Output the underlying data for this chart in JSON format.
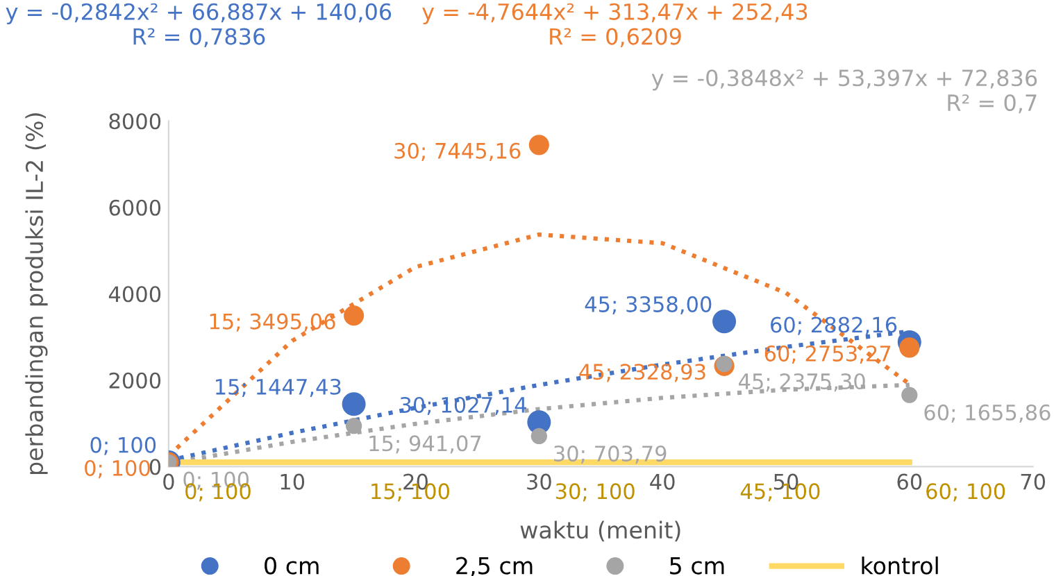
{
  "chart_data": {
    "type": "scatter",
    "xlabel": "waktu (menit)",
    "ylabel": "perbandingan produksi IL-2 (%)",
    "xlim": [
      0,
      70
    ],
    "xticks": [
      0,
      10,
      20,
      30,
      40,
      50,
      60,
      70
    ],
    "ylim": [
      0,
      8000
    ],
    "yticks": [
      0,
      2000,
      4000,
      6000,
      8000
    ],
    "grid": false,
    "legend": "bottom",
    "series": [
      {
        "name": "0 cm",
        "marker": "circle",
        "color": "#4472c4",
        "x": [
          0,
          15,
          30,
          45,
          60
        ],
        "values": [
          100,
          1447.43,
          1027.14,
          3358.0,
          2882.16
        ],
        "value_labels": [
          "0; 100",
          "15; 1447,43",
          "30; 1027,14",
          "45; 3358,00",
          "60; 2882,16"
        ]
      },
      {
        "name": "2,5 cm",
        "marker": "circle",
        "color": "#ed7d31",
        "x": [
          0,
          15,
          30,
          45,
          60
        ],
        "values": [
          100,
          3495.06,
          7445.16,
          2328.93,
          2753.27
        ],
        "value_labels": [
          "0; 100",
          "15; 3495,06",
          "30; 7445,16",
          "45; 2328,93",
          "60; 2753,27"
        ]
      },
      {
        "name": "5 cm",
        "marker": "circle",
        "color": "#a5a5a5",
        "x": [
          0,
          15,
          30,
          45,
          60
        ],
        "values": [
          100,
          941.07,
          703.79,
          2375.3,
          1655.86
        ],
        "value_labels": [
          "0; 100",
          "15; 941,07",
          "30; 703,79",
          "45; 2375,30",
          "60; 1655,86"
        ]
      },
      {
        "name": "kontrol",
        "type": "line",
        "marker": "none",
        "line_style": "solid",
        "color": "#ffd966",
        "x": [
          0,
          15,
          30,
          45,
          60
        ],
        "values": [
          100,
          100,
          100,
          100,
          100
        ],
        "value_labels": [
          "0; 100",
          "15; 100",
          "30; 100",
          "45; 100",
          "60; 100"
        ]
      },
      {
        "type": "line",
        "marker": "none",
        "line_style": "dotted",
        "color": "#4472c4",
        "x": [
          0,
          10,
          20,
          30,
          40,
          50,
          60
        ],
        "values": [
          140,
          780,
          1360,
          1890,
          2360,
          2770,
          3130
        ]
      },
      {
        "type": "line",
        "marker": "none",
        "line_style": "dotted",
        "color": "#ed7d31",
        "x": [
          0,
          10,
          20,
          30,
          40,
          50,
          60
        ],
        "values": [
          250,
          2910,
          4620,
          5370,
          5170,
          4020,
          1910
        ]
      },
      {
        "type": "line",
        "marker": "none",
        "line_style": "dotted",
        "color": "#a5a5a5",
        "x": [
          0,
          10,
          20,
          30,
          40,
          50,
          60
        ],
        "values": [
          70,
          570,
          990,
          1330,
          1590,
          1780,
          1890
        ]
      }
    ],
    "annotations": [
      "y = -0,2842x² + 66,887x + 140,06\nR² = 0,7836",
      "y = -4,7644x² + 313,47x + 252,43\nR² = 0,6209",
      "y = -0,3848x² + 53,397x + 72,836\nR² = 0,7"
    ]
  }
}
